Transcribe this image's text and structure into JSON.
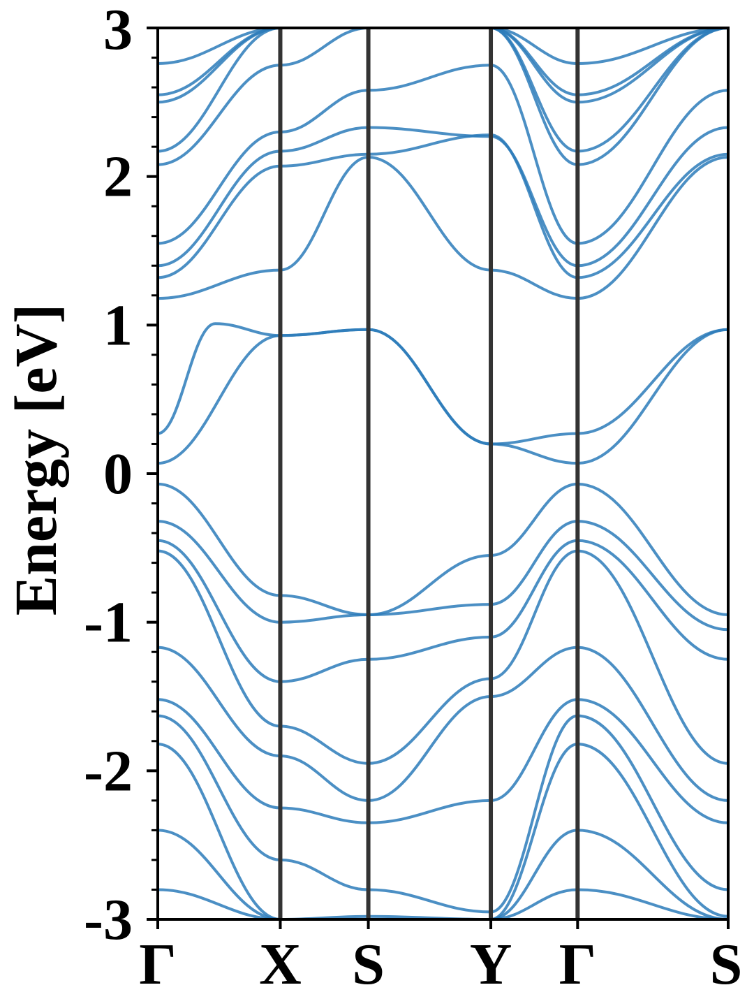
{
  "chart_data": {
    "type": "line",
    "title": "",
    "xlabel": "",
    "ylabel": "Energy [eV]",
    "ylim": [
      -3,
      3
    ],
    "yticks": [
      "3",
      "2",
      "1",
      "0",
      "-1",
      "-2",
      "-3"
    ],
    "ytick_values": [
      3,
      2,
      1,
      0,
      -1,
      -2,
      -3
    ],
    "xlim": [
      0,
      4.47
    ],
    "kpoints": [
      {
        "label": "Γ",
        "x": 0.0
      },
      {
        "label": "X",
        "x": 0.96
      },
      {
        "label": "S",
        "x": 1.65
      },
      {
        "label": "Y",
        "x": 2.61
      },
      {
        "label": "Γ",
        "x": 3.29
      },
      {
        "label": "S",
        "x": 4.47
      }
    ],
    "grid": false,
    "legend": "none",
    "line_color": "#2b7bba",
    "divider_color": "#333333",
    "series": [
      {
        "x": [
          0,
          0.96,
          1.65,
          2.61,
          3.29,
          4.47
        ],
        "values": [
          0.07,
          0.93,
          0.97,
          0.2,
          0.07,
          0.97
        ]
      },
      {
        "x": [
          0,
          0.45,
          0.96,
          1.65,
          2.61,
          3.29,
          4.47
        ],
        "values": [
          0.27,
          1.01,
          0.93,
          0.97,
          0.2,
          0.27,
          0.97
        ]
      },
      {
        "x": [
          0,
          0.96,
          1.65,
          2.61,
          3.29,
          4.47
        ],
        "values": [
          -0.07,
          -0.82,
          -0.95,
          -0.55,
          -0.07,
          -0.95
        ]
      },
      {
        "x": [
          0,
          0.96,
          1.65,
          2.61,
          3.29,
          4.47
        ],
        "values": [
          -0.32,
          -1.0,
          -0.95,
          -0.88,
          -0.32,
          -1.05
        ]
      },
      {
        "x": [
          0,
          0.96,
          1.65,
          2.61,
          3.29,
          4.47
        ],
        "values": [
          -0.45,
          -1.4,
          -1.25,
          -1.1,
          -0.45,
          -1.25
        ]
      },
      {
        "x": [
          0,
          0.96,
          1.65,
          2.61,
          3.29,
          4.47
        ],
        "values": [
          -0.52,
          -1.7,
          -1.95,
          -1.38,
          -0.52,
          -1.95
        ]
      },
      {
        "x": [
          0,
          0.96,
          1.65,
          2.61,
          3.29,
          4.47
        ],
        "values": [
          -1.17,
          -1.9,
          -2.2,
          -1.5,
          -1.17,
          -2.2
        ]
      },
      {
        "x": [
          0,
          0.96,
          1.65,
          2.61,
          3.29,
          4.47
        ],
        "values": [
          -1.52,
          -2.25,
          -2.35,
          -2.2,
          -1.52,
          -2.35
        ]
      },
      {
        "x": [
          0,
          0.96,
          1.65,
          2.61,
          3.29,
          4.47
        ],
        "values": [
          -1.63,
          -2.6,
          -2.8,
          -2.95,
          -1.63,
          -2.8
        ]
      },
      {
        "x": [
          0,
          0.96,
          1.65,
          2.61,
          3.29,
          4.47
        ],
        "values": [
          -1.82,
          -3.0,
          -2.98,
          -3.0,
          -1.82,
          -2.98
        ]
      },
      {
        "x": [
          0,
          0.96,
          1.65,
          2.61,
          3.29,
          4.47
        ],
        "values": [
          -2.4,
          -3.0,
          -3.0,
          -3.0,
          -2.4,
          -3.0
        ]
      },
      {
        "x": [
          0,
          0.96,
          1.65,
          2.61,
          3.29,
          4.47
        ],
        "values": [
          -2.8,
          -3.0,
          -3.0,
          -3.0,
          -2.8,
          -3.0
        ]
      },
      {
        "x": [
          0,
          0.96,
          1.65,
          2.61,
          3.29,
          4.47
        ],
        "values": [
          1.18,
          1.37,
          2.13,
          1.37,
          1.18,
          2.13
        ]
      },
      {
        "x": [
          0,
          0.96,
          1.65,
          2.61,
          3.29,
          4.47
        ],
        "values": [
          1.32,
          2.07,
          2.15,
          2.28,
          1.32,
          2.15
        ]
      },
      {
        "x": [
          0,
          0.96,
          1.65,
          2.61,
          3.29,
          4.47
        ],
        "values": [
          1.4,
          2.17,
          2.33,
          2.27,
          1.4,
          2.33
        ]
      },
      {
        "x": [
          0,
          0.96,
          1.65,
          2.61,
          3.29,
          4.47
        ],
        "values": [
          1.55,
          2.3,
          2.58,
          2.75,
          1.55,
          2.58
        ]
      },
      {
        "x": [
          0,
          0.96,
          1.65,
          2.61,
          3.29,
          4.47
        ],
        "values": [
          2.08,
          2.75,
          3.0,
          3.0,
          2.08,
          3.0
        ]
      },
      {
        "x": [
          0,
          0.96,
          1.65,
          2.61,
          3.29,
          4.47
        ],
        "values": [
          2.17,
          3.0,
          3.0,
          3.0,
          2.17,
          3.0
        ]
      },
      {
        "x": [
          0,
          0.96,
          1.65,
          2.61,
          3.29,
          4.47
        ],
        "values": [
          2.5,
          3.0,
          3.0,
          3.0,
          2.5,
          3.0
        ]
      },
      {
        "x": [
          0,
          0.96,
          1.65,
          2.61,
          3.29,
          4.47
        ],
        "values": [
          2.55,
          3.0,
          3.0,
          3.0,
          2.55,
          3.0
        ]
      },
      {
        "x": [
          0,
          0.96,
          1.65,
          2.61,
          3.29,
          4.47
        ],
        "values": [
          2.76,
          3.0,
          3.0,
          3.0,
          2.76,
          3.0
        ]
      }
    ]
  }
}
